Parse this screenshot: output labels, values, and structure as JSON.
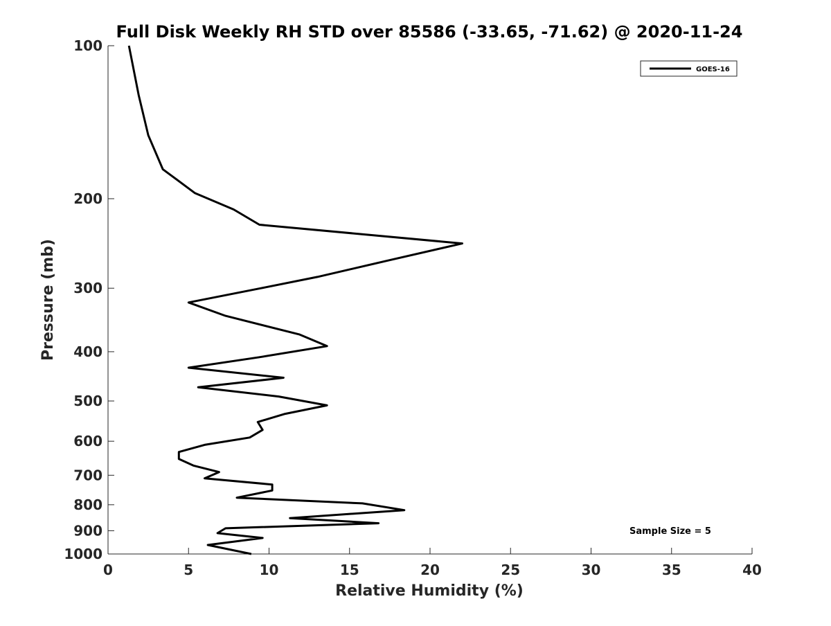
{
  "chart_data": {
    "type": "line",
    "title": "Full Disk Weekly RH STD over 85586 (-33.65, -71.62) @ 2020-11-24",
    "xlabel": "Relative Humidity (%)",
    "ylabel": "Pressure (mb)",
    "xlim": [
      0,
      40
    ],
    "ylim": [
      100,
      1000
    ],
    "y_scale": "log",
    "y_reversed": true,
    "x_ticks": [
      0,
      5,
      10,
      15,
      20,
      25,
      30,
      35,
      40
    ],
    "x_tick_labels": [
      "0",
      "5",
      "10",
      "15",
      "20",
      "25",
      "30",
      "35",
      "40"
    ],
    "y_ticks": [
      100,
      200,
      300,
      400,
      500,
      600,
      700,
      800,
      900,
      1000
    ],
    "y_tick_labels": [
      "100",
      "200",
      "300",
      "400",
      "500",
      "600",
      "700",
      "800",
      "900",
      "1000"
    ],
    "grid": false,
    "legend_position": "top-right",
    "line_color": "#000000",
    "annotation": "Sample Size = 5",
    "series": [
      {
        "name": "GOES-16",
        "x": [
          1.3,
          1.9,
          2.5,
          3.4,
          5.4,
          7.8,
          9.4,
          22.0,
          17.3,
          13.0,
          9.5,
          5.0,
          7.3,
          11.9,
          13.6,
          9.4,
          5.0,
          10.9,
          5.6,
          10.6,
          13.6,
          11.0,
          9.3,
          9.6,
          8.8,
          6.0,
          4.4,
          4.4,
          5.3,
          6.9,
          6.0,
          10.2,
          10.2,
          8.0,
          15.8,
          18.4,
          11.3,
          16.8,
          7.3,
          6.8,
          9.6,
          6.2,
          8.9
        ],
        "y": [
          100,
          125,
          150,
          175,
          195,
          210,
          225,
          245,
          265,
          285,
          300,
          320,
          340,
          370,
          390,
          410,
          430,
          450,
          470,
          490,
          510,
          530,
          550,
          570,
          590,
          610,
          630,
          650,
          670,
          690,
          710,
          730,
          750,
          775,
          795,
          820,
          850,
          870,
          890,
          910,
          930,
          960,
          1000
        ]
      }
    ]
  }
}
